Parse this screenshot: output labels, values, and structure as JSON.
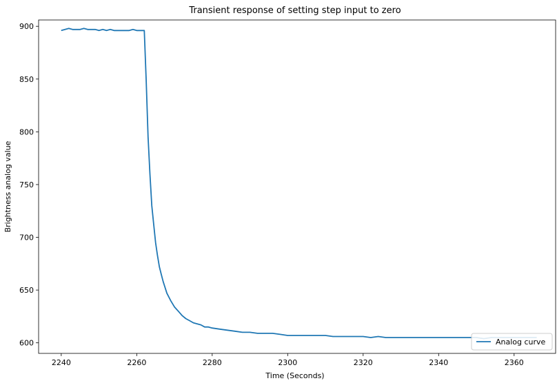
{
  "chart_data": {
    "type": "line",
    "title": "Transient response of setting step input to zero",
    "xlabel": "Time (Seconds)",
    "ylabel": "Brightness analog value",
    "xlim": [
      2234,
      2371
    ],
    "ylim": [
      590,
      906
    ],
    "xticks": [
      2240,
      2260,
      2280,
      2300,
      2320,
      2340,
      2360
    ],
    "yticks": [
      600,
      650,
      700,
      750,
      800,
      850,
      900
    ],
    "grid": false,
    "legend": {
      "position": "lower-right",
      "entries": [
        "Analog curve"
      ]
    },
    "series": [
      {
        "name": "Analog curve",
        "color": "#1f77b4",
        "x": [
          2240,
          2241,
          2242,
          2243,
          2244,
          2245,
          2246,
          2247,
          2248,
          2249,
          2250,
          2251,
          2252,
          2253,
          2254,
          2255,
          2256,
          2257,
          2258,
          2259,
          2260,
          2261,
          2262,
          2262.5,
          2263,
          2263.5,
          2264,
          2264.5,
          2265,
          2265.5,
          2266,
          2266.5,
          2267,
          2268,
          2269,
          2270,
          2271,
          2272,
          2273,
          2274,
          2275,
          2276,
          2277,
          2278,
          2279,
          2280,
          2282,
          2284,
          2286,
          2288,
          2290,
          2292,
          2294,
          2296,
          2298,
          2300,
          2302,
          2304,
          2306,
          2308,
          2310,
          2312,
          2314,
          2316,
          2318,
          2320,
          2322,
          2324,
          2326,
          2328,
          2330,
          2332,
          2334,
          2336,
          2338,
          2340,
          2342,
          2344,
          2346,
          2348,
          2350,
          2352,
          2354,
          2356,
          2358,
          2360,
          2362,
          2364,
          2366
        ],
        "y": [
          896,
          897,
          898,
          897,
          897,
          897,
          898,
          897,
          897,
          897,
          896,
          897,
          896,
          897,
          896,
          896,
          896,
          896,
          896,
          897,
          896,
          896,
          896,
          850,
          795,
          760,
          730,
          712,
          695,
          683,
          672,
          665,
          658,
          647,
          640,
          634,
          630,
          626,
          623,
          621,
          619,
          618,
          617,
          615,
          615,
          614,
          613,
          612,
          611,
          610,
          610,
          609,
          609,
          609,
          608,
          607,
          607,
          607,
          607,
          607,
          607,
          606,
          606,
          606,
          606,
          606,
          605,
          606,
          605,
          605,
          605,
          605,
          605,
          605,
          605,
          605,
          605,
          605,
          605,
          605,
          605,
          604,
          605,
          605,
          605,
          605,
          605,
          605,
          605
        ]
      }
    ]
  }
}
